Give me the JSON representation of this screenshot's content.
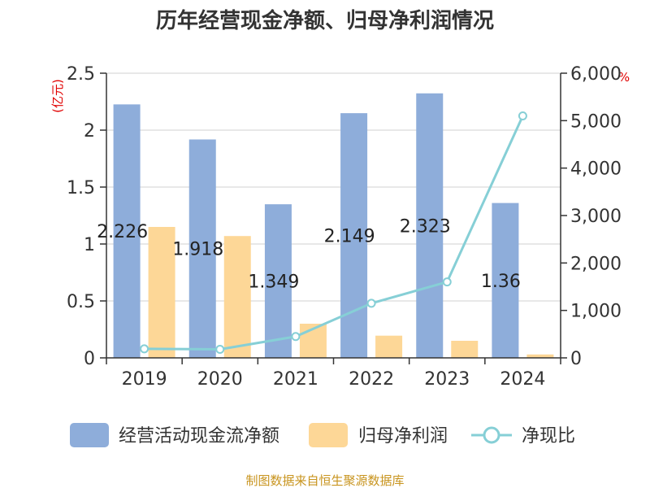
{
  "chart_data": {
    "type": "bar",
    "title": "历年经营现金净额、归母净利润情况",
    "categories": [
      "2019",
      "2020",
      "2021",
      "2022",
      "2023",
      "2024"
    ],
    "series": [
      {
        "name": "经营活动现金流净额",
        "kind": "bar",
        "axis": "left",
        "color": "#8eadda",
        "values": [
          2.226,
          1.918,
          1.349,
          2.149,
          2.323,
          1.36
        ]
      },
      {
        "name": "归母净利润",
        "kind": "bar",
        "axis": "left",
        "color": "#fdd797",
        "values": [
          1.15,
          1.07,
          0.3,
          0.195,
          0.15,
          0.03
        ]
      },
      {
        "name": "净现比",
        "kind": "line",
        "axis": "right",
        "color": "#86cfd6",
        "values": [
          190,
          180,
          450,
          1150,
          1600,
          5100
        ]
      }
    ],
    "data_labels": [
      "2.226",
      "1.918",
      "1.349",
      "2.149",
      "2.323",
      "1.36"
    ],
    "y_left": {
      "unit": "(亿元)",
      "ticks": [
        "0",
        "0.5",
        "1",
        "1.5",
        "2",
        "2.5"
      ],
      "range": [
        0,
        2.5
      ]
    },
    "y_right": {
      "unit": "%",
      "ticks": [
        "0",
        "1,000",
        "2,000",
        "3,000",
        "4,000",
        "5,000",
        "6,000"
      ],
      "range": [
        0,
        6000
      ]
    },
    "grid": true,
    "legend_position": "bottom"
  },
  "source": "制图数据来自恒生聚源数据库"
}
